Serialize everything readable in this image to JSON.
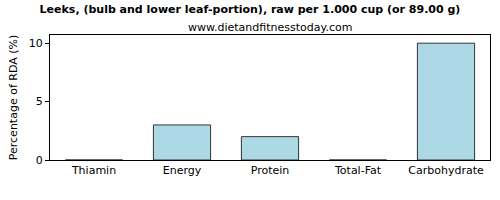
{
  "chart_data": {
    "type": "bar",
    "title": "Leeks, (bulb and lower leaf-portion), raw per 1.000 cup (or 89.00 g)",
    "subtitle": "www.dietandfitnesstoday.com",
    "ylabel": "Percentage of RDA (%)",
    "categories": [
      "Thiamin",
      "Energy",
      "Protein",
      "Total-Fat",
      "Carbohydrate"
    ],
    "values": [
      0,
      3,
      2,
      0,
      10
    ],
    "color": "#add8e6",
    "ylim": [
      0,
      10.7
    ],
    "yticks": [
      0,
      5,
      10
    ],
    "grid": false
  }
}
